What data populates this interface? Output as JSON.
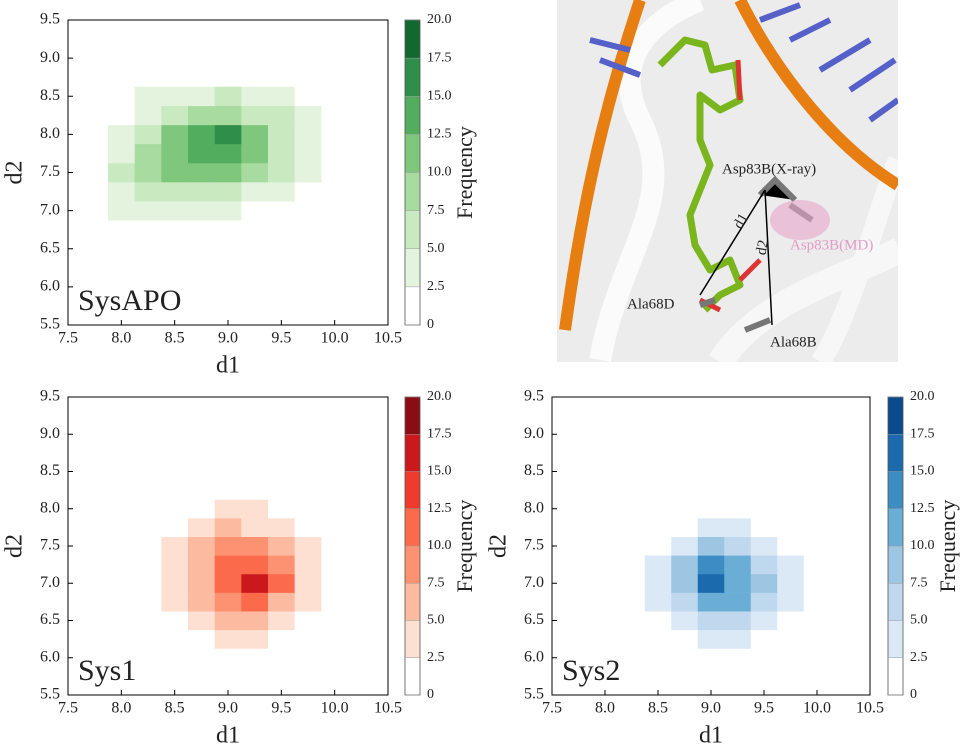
{
  "chart_data": [
    {
      "type": "contour",
      "title": "SysAPO",
      "xlabel": "d1",
      "ylabel": "d2",
      "colorbar_label": "Frequency",
      "x": [
        8.0,
        8.25,
        8.5,
        8.75,
        9.0,
        9.25,
        9.5,
        9.75,
        10.0
      ],
      "y": [
        6.0,
        6.25,
        6.5,
        6.75,
        7.0,
        7.25,
        7.5,
        7.75,
        8.0,
        8.25,
        8.5
      ],
      "z": [
        [
          0,
          0,
          0,
          0,
          0,
          0,
          0,
          0,
          0
        ],
        [
          0,
          0,
          0,
          0,
          0,
          0,
          0,
          0,
          0
        ],
        [
          0,
          0,
          0,
          0,
          0,
          0,
          0,
          0,
          0
        ],
        [
          0,
          0,
          0,
          0,
          0,
          0,
          0,
          0,
          0
        ],
        [
          2.6,
          3,
          3,
          3,
          2.6,
          0,
          0,
          0,
          0
        ],
        [
          4,
          6,
          7,
          7,
          6,
          4,
          3,
          0,
          0
        ],
        [
          5,
          8,
          11,
          12,
          10,
          8,
          5,
          3,
          0
        ],
        [
          4,
          8,
          12,
          14,
          13,
          10,
          7,
          4,
          0
        ],
        [
          3,
          6,
          10,
          13,
          15,
          11,
          7,
          4,
          0
        ],
        [
          0,
          4,
          6,
          8,
          9,
          7,
          5,
          3,
          0
        ],
        [
          0,
          2.6,
          3,
          4,
          5,
          4,
          3,
          0,
          0
        ]
      ],
      "xlim": [
        7.5,
        10.5
      ],
      "ylim": [
        5.5,
        9.5
      ],
      "clim": [
        0,
        20
      ],
      "xticks": [
        7.5,
        {
          "value": 8,
          "label": "8.0"
        },
        8.5,
        {
          "value": 9,
          "label": "9.0"
        },
        9.5,
        {
          "value": 10,
          "label": "10.0"
        },
        10.5
      ],
      "yticks": [
        5.5,
        {
          "value": 6,
          "label": "6.0"
        },
        6.5,
        {
          "value": 7,
          "label": "7.0"
        },
        7.5,
        {
          "value": 8,
          "label": "8.0"
        },
        8.5,
        {
          "value": 9,
          "label": "9.0"
        },
        9.5
      ],
      "cticks": [
        0,
        2.5,
        {
          "value": 5,
          "label": "5.0"
        },
        7.5,
        {
          "value": 10,
          "label": "10.0"
        },
        12.5,
        {
          "value": 15,
          "label": "15.0"
        },
        17.5,
        {
          "value": 20,
          "label": "20.0"
        }
      ],
      "colors": [
        "#ffffff",
        "#e3f3de",
        "#c9e9c1",
        "#a7dba0",
        "#7fc77c",
        "#52ad5f",
        "#2f8f4a",
        "#11692f"
      ]
    },
    {
      "type": "contour",
      "title": "Sys1",
      "xlabel": "d1",
      "ylabel": "d2",
      "colorbar_label": "Frequency",
      "x": [
        8.0,
        8.25,
        8.5,
        8.75,
        9.0,
        9.25,
        9.5,
        9.75,
        10.0
      ],
      "y": [
        6.0,
        6.25,
        6.5,
        6.75,
        7.0,
        7.25,
        7.5,
        7.75,
        8.0,
        8.25,
        8.5
      ],
      "z": [
        [
          0,
          0,
          0,
          0,
          0,
          0,
          0,
          0,
          0
        ],
        [
          0,
          0,
          0,
          0,
          3,
          3,
          0,
          0,
          0
        ],
        [
          0,
          0,
          0,
          3,
          5,
          6,
          4,
          0,
          0
        ],
        [
          0,
          0,
          3,
          6,
          9,
          10,
          7,
          3,
          0
        ],
        [
          0,
          0,
          3,
          7,
          12,
          15,
          10,
          4,
          0
        ],
        [
          0,
          0,
          3,
          6,
          11,
          12,
          8,
          4,
          0
        ],
        [
          0,
          0,
          3,
          5,
          8,
          8,
          5,
          3,
          0
        ],
        [
          0,
          0,
          0,
          3,
          5,
          4,
          3,
          0,
          0
        ],
        [
          0,
          0,
          0,
          0,
          3,
          3,
          0,
          0,
          0
        ],
        [
          0,
          0,
          0,
          0,
          0,
          0,
          0,
          0,
          0
        ],
        [
          0,
          0,
          0,
          0,
          0,
          0,
          0,
          0,
          0
        ]
      ],
      "xlim": [
        7.5,
        10.5
      ],
      "ylim": [
        5.5,
        9.5
      ],
      "clim": [
        0,
        20
      ],
      "xticks": [
        7.5,
        {
          "value": 8,
          "label": "8.0"
        },
        8.5,
        {
          "value": 9,
          "label": "9.0"
        },
        9.5,
        {
          "value": 10,
          "label": "10.0"
        },
        10.5
      ],
      "yticks": [
        5.5,
        {
          "value": 6,
          "label": "6.0"
        },
        6.5,
        {
          "value": 7,
          "label": "7.0"
        },
        7.5,
        {
          "value": 8,
          "label": "8.0"
        },
        8.5,
        {
          "value": 9,
          "label": "9.0"
        },
        9.5
      ],
      "cticks": [
        0,
        2.5,
        {
          "value": 5,
          "label": "5.0"
        },
        7.5,
        {
          "value": 10,
          "label": "10.0"
        },
        12.5,
        {
          "value": 15,
          "label": "15.0"
        },
        17.5,
        {
          "value": 20,
          "label": "20.0"
        }
      ],
      "colors": [
        "#ffffff",
        "#fde0d2",
        "#fcbba1",
        "#fc9272",
        "#fb6a4a",
        "#ef3b2c",
        "#cb181d",
        "#8b0d14"
      ]
    },
    {
      "type": "contour",
      "title": "Sys2",
      "xlabel": "d1",
      "ylabel": "d2",
      "colorbar_label": "Frequency",
      "x": [
        8.0,
        8.25,
        8.5,
        8.75,
        9.0,
        9.25,
        9.5,
        9.75,
        10.0
      ],
      "y": [
        6.0,
        6.25,
        6.5,
        6.75,
        7.0,
        7.25,
        7.5,
        7.75,
        8.0,
        8.25,
        8.5
      ],
      "z": [
        [
          0,
          0,
          0,
          0,
          0,
          0,
          0,
          0,
          0
        ],
        [
          0,
          0,
          0,
          0,
          3,
          3,
          0,
          0,
          0
        ],
        [
          0,
          0,
          0,
          3,
          6,
          6,
          3,
          0,
          0
        ],
        [
          0,
          0,
          3,
          7,
          11,
          10,
          6,
          3,
          0
        ],
        [
          0,
          0,
          3,
          9,
          16,
          12,
          8,
          3,
          0
        ],
        [
          0,
          0,
          3,
          8,
          13,
          11,
          6,
          3,
          0
        ],
        [
          0,
          0,
          0,
          4,
          8,
          7,
          4,
          0,
          0
        ],
        [
          0,
          0,
          0,
          0,
          3,
          3,
          0,
          0,
          0
        ],
        [
          0,
          0,
          0,
          0,
          0,
          0,
          0,
          0,
          0
        ],
        [
          0,
          0,
          0,
          0,
          0,
          0,
          0,
          0,
          0
        ],
        [
          0,
          0,
          0,
          0,
          0,
          0,
          0,
          0,
          0
        ]
      ],
      "xlim": [
        7.5,
        10.5
      ],
      "ylim": [
        5.5,
        9.5
      ],
      "clim": [
        0,
        20
      ],
      "xticks": [
        7.5,
        {
          "value": 8,
          "label": "8.0"
        },
        8.5,
        {
          "value": 9,
          "label": "9.0"
        },
        9.5,
        {
          "value": 10,
          "label": "10.0"
        },
        10.5
      ],
      "yticks": [
        5.5,
        {
          "value": 6,
          "label": "6.0"
        },
        6.5,
        {
          "value": 7,
          "label": "7.0"
        },
        7.5,
        {
          "value": 8,
          "label": "8.0"
        },
        8.5,
        {
          "value": 9,
          "label": "9.0"
        },
        9.5
      ],
      "cticks": [
        0,
        2.5,
        {
          "value": 5,
          "label": "5.0"
        },
        7.5,
        {
          "value": 10,
          "label": "10.0"
        },
        12.5,
        {
          "value": 15,
          "label": "15.0"
        },
        17.5,
        {
          "value": 20,
          "label": "20.0"
        }
      ],
      "colors": [
        "#ffffff",
        "#dbe9f6",
        "#c0d8ed",
        "#9cc6e2",
        "#6aaed6",
        "#3d8dc4",
        "#1c6aae",
        "#0b4a8c"
      ]
    }
  ],
  "structure_panel": {
    "labels": [
      "Asp83B(X-ray)",
      "d1",
      "d2",
      "Asp83B(MD)",
      "Ala68D",
      "Ala68B"
    ]
  }
}
